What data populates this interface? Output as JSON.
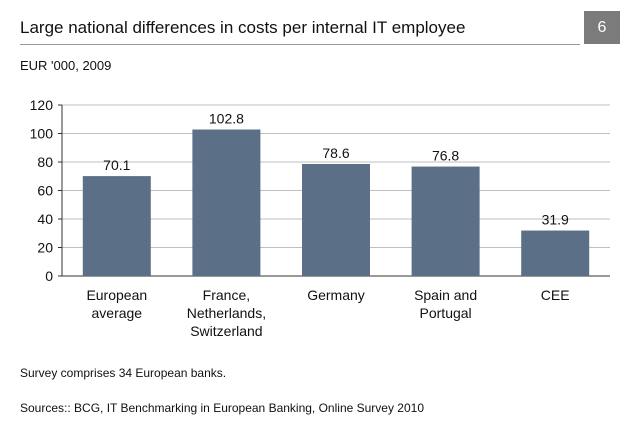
{
  "header": {
    "title": "Large national differences in costs per  internal IT employee",
    "badge": "6",
    "subtitle": "EUR '000, 2009"
  },
  "footer": {
    "note": "Survey comprises 34 European banks.",
    "source": "Sources:: BCG, IT Benchmarking in European Banking, Online Survey 2010"
  },
  "colors": {
    "bar": "#5b6f86",
    "grid": "#bfbfbf",
    "axis": "#333333"
  },
  "chart_data": {
    "type": "bar",
    "categories": [
      [
        "European",
        "average"
      ],
      [
        "France,",
        "Netherlands,",
        "Switzerland"
      ],
      [
        "Germany"
      ],
      [
        "Spain and",
        "Portugal"
      ],
      [
        "CEE"
      ]
    ],
    "values": [
      70.1,
      102.8,
      78.6,
      76.8,
      31.9
    ],
    "data_labels": [
      "70.1",
      "102.8",
      "78.6",
      "76.8",
      "31.9"
    ],
    "ylim": [
      0,
      120
    ],
    "yticks": [
      0,
      20,
      40,
      60,
      80,
      100,
      120
    ],
    "grid": true
  }
}
